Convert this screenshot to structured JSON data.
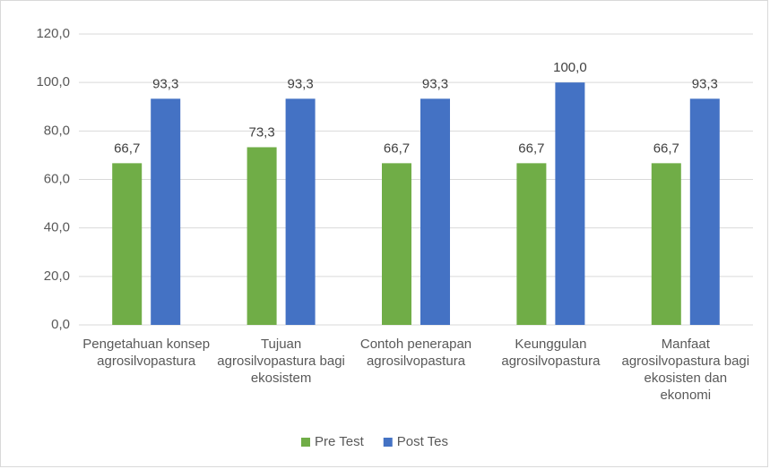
{
  "chart_data": {
    "type": "bar",
    "categories": [
      "Pengetahuan konsep agrosilvopastura",
      "Tujuan agrosilvopastura bagi ekosistem",
      "Contoh penerapan agrosilvopastura",
      "Keunggulan agrosilvopastura",
      "Manfaat agrosilvopastura bagi ekosisten dan ekonomi"
    ],
    "series": [
      {
        "name": "Pre Test",
        "color": "#70ad47",
        "values": [
          66.7,
          73.3,
          66.7,
          66.7,
          66.7
        ],
        "value_labels": [
          "66,7",
          "73,3",
          "66,7",
          "66,7",
          "66,7"
        ]
      },
      {
        "name": "Post Tes",
        "color": "#4472c4",
        "values": [
          93.3,
          93.3,
          93.3,
          100.0,
          93.3
        ],
        "value_labels": [
          "93,3",
          "93,3",
          "93,3",
          "100,0",
          "93,3"
        ]
      }
    ],
    "ylim": [
      0,
      120
    ],
    "yticks": [
      {
        "value": 0,
        "label": "0,0"
      },
      {
        "value": 20,
        "label": "20,0"
      },
      {
        "value": 40,
        "label": "40,0"
      },
      {
        "value": 60,
        "label": "60,0"
      },
      {
        "value": 80,
        "label": "80,0"
      },
      {
        "value": 100,
        "label": "100,0"
      },
      {
        "value": 120,
        "label": "120,0"
      }
    ],
    "grid": true,
    "legend": "bottom"
  }
}
